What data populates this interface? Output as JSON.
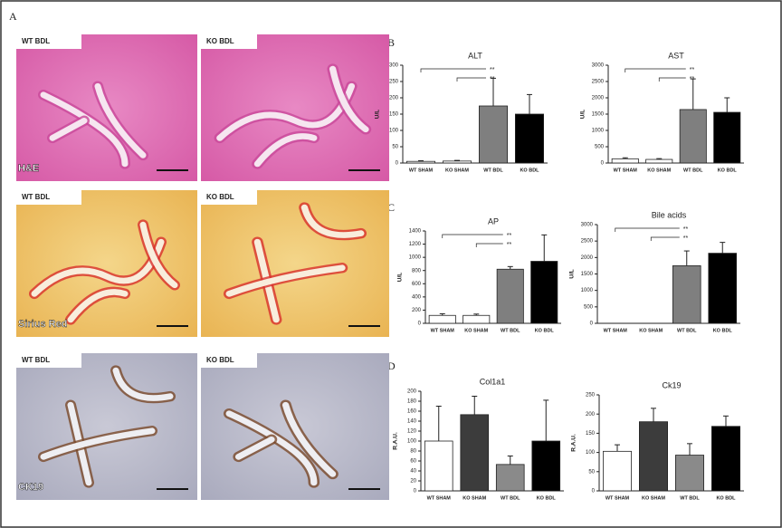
{
  "panels": {
    "a": "A",
    "b": "B",
    "c": "C",
    "d": "D",
    "images": [
      {
        "left": "WT BDL",
        "right": "KO BDL",
        "stain": "H&E"
      },
      {
        "left": "WT BDL",
        "right": "KO BDL",
        "stain": "Sirius Red"
      },
      {
        "left": "WT BDL",
        "right": "KO BDL",
        "stain": "CK19"
      }
    ]
  },
  "chart_data": [
    {
      "type": "bar",
      "title": "ALT",
      "ylabel": "U/L",
      "categories": [
        "WT SHAM",
        "KO SHAM",
        "WT BDL",
        "KO BDL"
      ],
      "values": [
        5,
        6,
        175,
        150
      ],
      "errors": [
        2,
        2,
        85,
        60
      ],
      "colors": [
        "#ffffff",
        "#ffffff",
        "#7f7f7f",
        "#000000"
      ],
      "annotations": [
        "**",
        "**"
      ],
      "ylim": [
        0,
        300
      ],
      "yticks": [
        0,
        50,
        100,
        150,
        200,
        250,
        300
      ]
    },
    {
      "type": "bar",
      "title": "AST",
      "ylabel": "U/L",
      "categories": [
        "WT SHAM",
        "KO SHAM",
        "WT BDL",
        "KO BDL"
      ],
      "values": [
        130,
        110,
        1640,
        1555
      ],
      "errors": [
        30,
        25,
        940,
        445
      ],
      "colors": [
        "#ffffff",
        "#ffffff",
        "#7f7f7f",
        "#000000"
      ],
      "annotations": [
        "**",
        "**"
      ],
      "ylim": [
        0,
        3000
      ],
      "yticks": [
        0,
        500,
        1000,
        1500,
        2000,
        2500,
        3000
      ]
    },
    {
      "type": "bar",
      "title": "AP",
      "ylabel": "U/L",
      "categories": [
        "WT SHAM",
        "KO SHAM",
        "WT BDL",
        "KO BDL"
      ],
      "values": [
        120,
        120,
        820,
        940
      ],
      "errors": [
        25,
        20,
        40,
        400
      ],
      "colors": [
        "#ffffff",
        "#ffffff",
        "#7f7f7f",
        "#000000"
      ],
      "annotations": [
        "**",
        "**"
      ],
      "ylim": [
        0,
        1400
      ],
      "yticks": [
        0,
        200,
        400,
        600,
        800,
        1000,
        1200,
        1400
      ]
    },
    {
      "type": "bar",
      "title": "Bile acids",
      "ylabel": "U/L",
      "categories": [
        "WT SHAM",
        "KO SHAM",
        "WT BDL",
        "KO BDL"
      ],
      "values": [
        0,
        0,
        1750,
        2130
      ],
      "errors": [
        0,
        0,
        450,
        330
      ],
      "colors": [
        "#ffffff",
        "#ffffff",
        "#7f7f7f",
        "#000000"
      ],
      "annotations": [
        "**",
        "**"
      ],
      "ylim": [
        0,
        3000
      ],
      "yticks": [
        0,
        500,
        1000,
        1500,
        2000,
        2500,
        3000
      ]
    },
    {
      "type": "bar",
      "title": "Col1a1",
      "ylabel": "R.A.U.",
      "categories": [
        "WT SHAM",
        "KO SHAM",
        "WT BDL",
        "KO BDL"
      ],
      "values": [
        100,
        153,
        53,
        100
      ],
      "errors": [
        70,
        37,
        17,
        82
      ],
      "colors": [
        "#ffffff",
        "#3c3c3c",
        "#8a8a8a",
        "#000000"
      ],
      "ylim": [
        0,
        200
      ],
      "yticks": [
        0,
        20,
        40,
        60,
        80,
        100,
        120,
        140,
        160,
        180,
        200
      ]
    },
    {
      "type": "bar",
      "title": "Ck19",
      "ylabel": "R.A.U.",
      "categories": [
        "WT SHAM",
        "KO SHAM",
        "WT BDL",
        "KO BDL"
      ],
      "values": [
        103,
        180,
        93,
        168
      ],
      "errors": [
        17,
        35,
        30,
        27
      ],
      "colors": [
        "#ffffff",
        "#3c3c3c",
        "#8a8a8a",
        "#000000"
      ],
      "ylim": [
        0,
        250
      ],
      "yticks": [
        0,
        50,
        100,
        150,
        200,
        250
      ]
    }
  ]
}
